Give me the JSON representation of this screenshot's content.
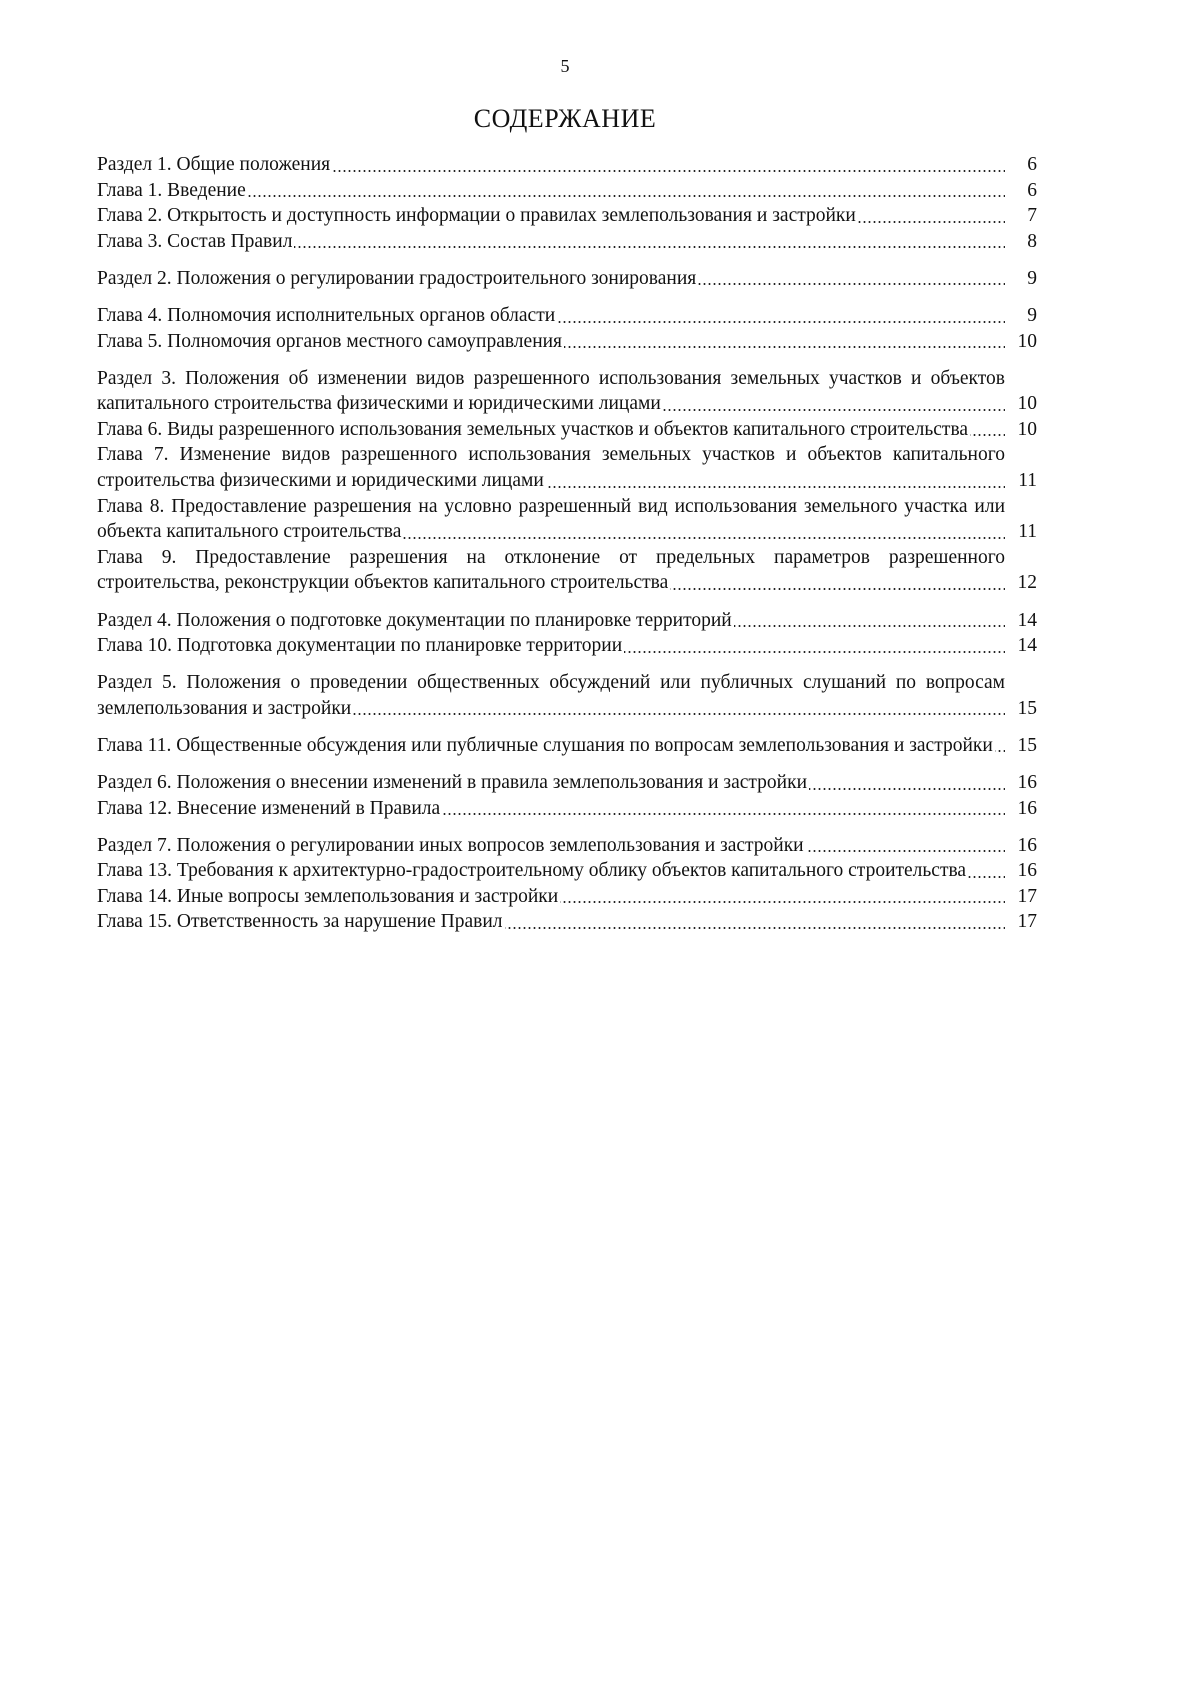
{
  "page_number": "5",
  "title": "СОДЕРЖАНИЕ",
  "groups": [
    [
      {
        "text": "Раздел 1. Общие положения",
        "page": "6"
      },
      {
        "text": "Глава 1. Введение",
        "page": "6"
      },
      {
        "text": "Глава 2. Открытость и доступность  информации о правилах землепользования и застройки",
        "page": "7"
      },
      {
        "text": "Глава 3. Состав Правил",
        "page": "8"
      }
    ],
    [
      {
        "text": "Раздел 2. Положения о регулировании градостроительного зонирования",
        "page": "9"
      }
    ],
    [
      {
        "text": "Глава 4. Полномочия исполнительных органов области",
        "page": "9"
      },
      {
        "text": "Глава 5. Полномочия органов местного самоуправления",
        "page": "10"
      }
    ],
    [
      {
        "text": "Раздел 3. Положения об изменении видов разрешенного использования земельных участков и объектов капитального строительства физическими и юридическими лицами",
        "page": "10"
      },
      {
        "text": "Глава 6. Виды разрешенного использования земельных участков и объектов капитального строительства",
        "page": "10"
      },
      {
        "text": "Глава 7. Изменение видов разрешенного использования земельных участков и объектов капитального строительства физическими и юридическими лицами",
        "page": "11"
      },
      {
        "text": "Глава 8. Предоставление разрешения на условно разрешенный вид использования земельного участка или объекта капитального строительства",
        "page": "11"
      },
      {
        "text": "Глава 9. Предоставление разрешения на отклонение от предельных параметров разрешенного строительства, реконструкции объектов капитального строительства",
        "page": "12"
      }
    ],
    [
      {
        "text": "Раздел 4. Положения о подготовке документации по планировке территорий",
        "page": "14"
      },
      {
        "text": "Глава 10. Подготовка документации по планировке территории",
        "page": "14"
      }
    ],
    [
      {
        "text": "Раздел 5. Положения о проведении общественных обсуждений или публичных слушаний по вопросам землепользования и застройки",
        "page": "15"
      }
    ],
    [
      {
        "text": "Глава 11. Общественные обсуждения или публичные слушания по вопросам землепользования и застройки",
        "page": "15"
      }
    ],
    [
      {
        "text": "Раздел 6. Положения о внесении изменений в правила  землепользования и застройки",
        "page": "16"
      },
      {
        "text": "Глава 12. Внесение изменений в Правила",
        "page": "16"
      }
    ],
    [
      {
        "text": "Раздел 7. Положения о регулировании иных вопросов  землепользования и застройки",
        "page": "16"
      },
      {
        "text": "Глава 13. Требования к архитектурно-градостроительному облику объектов капитального строительства",
        "page": "16"
      },
      {
        "text": "Глава 14. Иные вопросы землепользования и застройки",
        "page": "17"
      },
      {
        "text": "Глава 15. Ответственность за нарушение Правил",
        "page": "17"
      }
    ]
  ]
}
